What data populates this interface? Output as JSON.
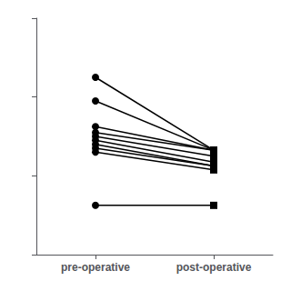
{
  "chart_data": {
    "type": "line",
    "categories": [
      "pre-operative",
      "post-operative"
    ],
    "series": [
      {
        "values": [
          9.0,
          5.3
        ]
      },
      {
        "values": [
          7.8,
          5.3
        ]
      },
      {
        "values": [
          6.5,
          5.3
        ]
      },
      {
        "values": [
          6.2,
          5.3
        ]
      },
      {
        "values": [
          6.0,
          5.0
        ]
      },
      {
        "values": [
          5.8,
          4.7
        ]
      },
      {
        "values": [
          5.6,
          4.5
        ]
      },
      {
        "values": [
          5.4,
          4.5
        ]
      },
      {
        "values": [
          5.2,
          4.3
        ]
      },
      {
        "values": [
          2.5,
          2.5
        ]
      }
    ],
    "color": "#000000",
    "ylim": [
      0,
      12
    ],
    "yticks": [
      0,
      4,
      8,
      12
    ],
    "grid": false,
    "tick_labels": "x"
  }
}
